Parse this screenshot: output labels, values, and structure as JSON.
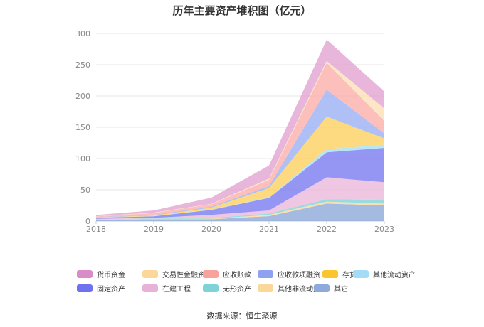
{
  "chart_data": {
    "type": "area",
    "stacked": true,
    "title": "历年主要资产堆积图（亿元）",
    "xlabel": "",
    "ylabel": "",
    "categories": [
      "2018",
      "2019",
      "2020",
      "2021",
      "2022",
      "2023"
    ],
    "ylim": [
      0,
      300
    ],
    "yticks": [
      0,
      50,
      100,
      150,
      200,
      250,
      300
    ],
    "grid": true,
    "legend_position": "bottom",
    "series": [
      {
        "name": "其它",
        "color": "#8fa9d8",
        "values": [
          2,
          3,
          3,
          8,
          28,
          25
        ]
      },
      {
        "name": "其他非流动资产",
        "color": "#fcd79a",
        "values": [
          0.3,
          0.5,
          1,
          2,
          3,
          3
        ]
      },
      {
        "name": "无形资产",
        "color": "#7fd3d8",
        "values": [
          0.5,
          0.7,
          1,
          2,
          4,
          6
        ]
      },
      {
        "name": "在建工程",
        "color": "#ebb9dc",
        "values": [
          1,
          1,
          5,
          5,
          35,
          28
        ]
      },
      {
        "name": "固定资产",
        "color": "#7b7cf0",
        "values": [
          1.5,
          2.5,
          8,
          20,
          40,
          55
        ]
      },
      {
        "name": "其他流动资产",
        "color": "#a7e0f5",
        "values": [
          0.2,
          0.3,
          0.5,
          1,
          5,
          5
        ]
      },
      {
        "name": "存货",
        "color": "#fcd060",
        "values": [
          0.5,
          1,
          3,
          15,
          52,
          10
        ]
      },
      {
        "name": "应收款项融资",
        "color": "#9bb0f5",
        "values": [
          0.5,
          1,
          1.5,
          3,
          43,
          8
        ]
      },
      {
        "name": "应收账款",
        "color": "#fbafaa",
        "values": [
          1,
          3,
          4,
          10,
          43,
          20
        ]
      },
      {
        "name": "交易性金融资产",
        "color": "#fde0b6",
        "values": [
          0.3,
          0.5,
          0.5,
          2,
          3,
          20
        ]
      },
      {
        "name": "货币资金",
        "color": "#e2a3d2",
        "values": [
          2,
          3.5,
          10,
          21,
          34,
          27
        ]
      }
    ],
    "legend": [
      {
        "name": "货币资金",
        "color": "#d98cc8"
      },
      {
        "name": "交易性金融资产",
        "color": "#fcd79a"
      },
      {
        "name": "应收账款",
        "color": "#f8a29b"
      },
      {
        "name": "应收款项融资",
        "color": "#8fa2f2"
      },
      {
        "name": "存货",
        "color": "#fbc530"
      },
      {
        "name": "其他流动资产",
        "color": "#a3dcf5"
      },
      {
        "name": "固定资产",
        "color": "#6f71ee"
      },
      {
        "name": "在建工程",
        "color": "#e8b2d8"
      },
      {
        "name": "无形资产",
        "color": "#7dd3d8"
      },
      {
        "name": "其他非流动资产",
        "color": "#fcd79a"
      },
      {
        "name": "其它",
        "color": "#8fa9d8"
      }
    ]
  },
  "source": "数据来源：恒生聚源"
}
